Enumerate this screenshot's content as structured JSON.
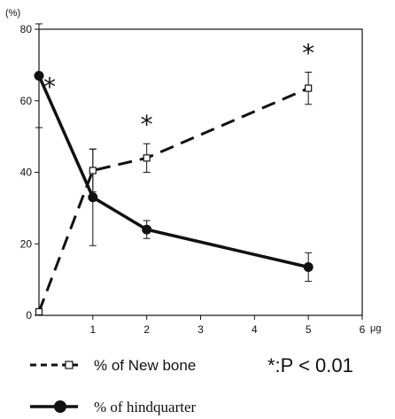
{
  "chart_data": {
    "type": "line",
    "y_unit": "(%)",
    "x_unit": "μg",
    "x_ticks": [
      "1",
      "2",
      "3",
      "4",
      "5",
      "6"
    ],
    "y_ticks": [
      "0",
      "20",
      "40",
      "60",
      "80"
    ],
    "xlim": [
      0,
      6
    ],
    "ylim": [
      0,
      80
    ],
    "grid": false,
    "series": [
      {
        "name": "% of New bone",
        "style": "dashed",
        "marker": "open-square",
        "color": "#111111",
        "x": [
          0,
          1,
          2,
          5
        ],
        "y": [
          1,
          40.5,
          44,
          63.5
        ],
        "err": [
          0,
          6,
          4,
          4.5
        ]
      },
      {
        "name": "% of hindquarter",
        "style": "solid",
        "marker": "filled-circle",
        "color": "#111111",
        "x": [
          0,
          1,
          2,
          5
        ],
        "y": [
          67,
          33,
          24,
          13.5
        ],
        "err": [
          14.5,
          13.5,
          2.5,
          4
        ]
      }
    ],
    "annotations": [
      {
        "text": "*",
        "x": 0,
        "series": "% of hindquarter"
      },
      {
        "text": "*",
        "x": 2,
        "series": "% of New bone"
      },
      {
        "text": "*",
        "x": 5,
        "series": "% of New bone"
      }
    ],
    "significance": "*:P < 0.01",
    "legend_position": "bottom"
  }
}
